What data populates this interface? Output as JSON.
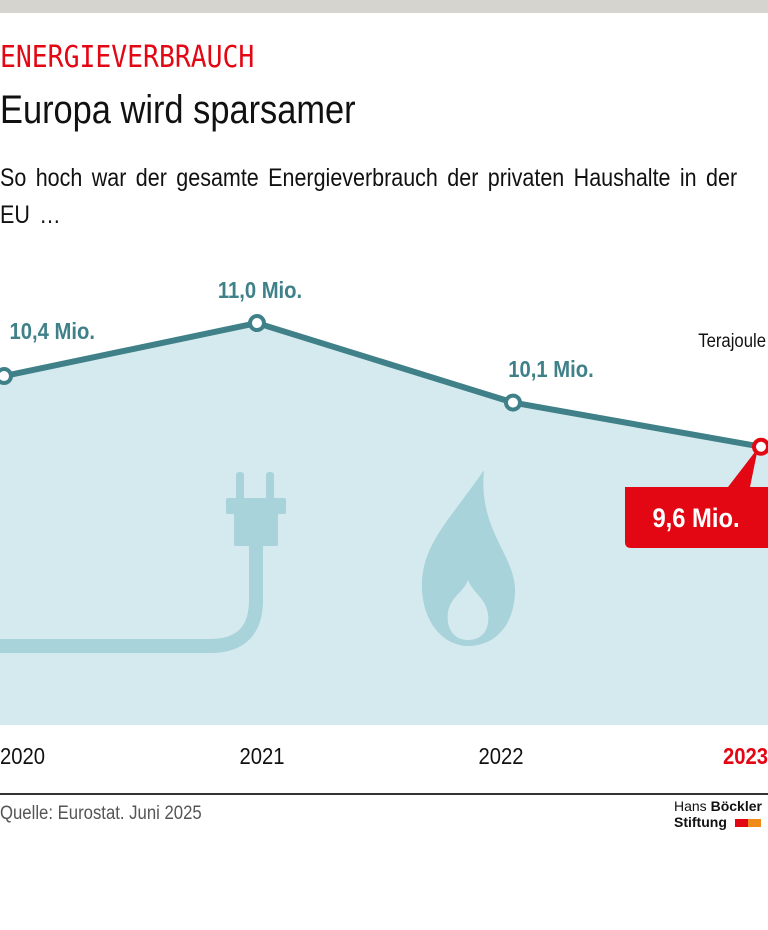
{
  "header": {
    "kicker": "ENERGIEVERBRAUCH",
    "title": "Europa wird sparsamer",
    "subtitle": "So hoch war der gesamte Energieverbrauch der privaten Haushalte in der EU …"
  },
  "chart_data": {
    "type": "area",
    "categories": [
      "2020",
      "2021",
      "2022",
      "2023"
    ],
    "values": [
      10.4,
      11.0,
      10.1,
      9.6
    ],
    "data_labels": [
      "10,4 Mio.",
      "11,0 Mio.",
      "10,1 Mio.",
      "9,6 Mio."
    ],
    "unit_label": "Terajoule",
    "highlight": "2023",
    "ylim": [
      6.45,
      12.5
    ],
    "grid": false,
    "colors": {
      "line": "#3f8089",
      "fill": "#d5eaee",
      "icon": "#a8d3da",
      "highlight": "#e30613"
    },
    "icons": [
      "plug-icon",
      "flame-icon"
    ]
  },
  "footer": {
    "source": "Quelle: Eurostat. Juni 2025",
    "logo_line1_a": "Hans ",
    "logo_line1_b": "Böckler",
    "logo_line2": "Stiftung"
  }
}
